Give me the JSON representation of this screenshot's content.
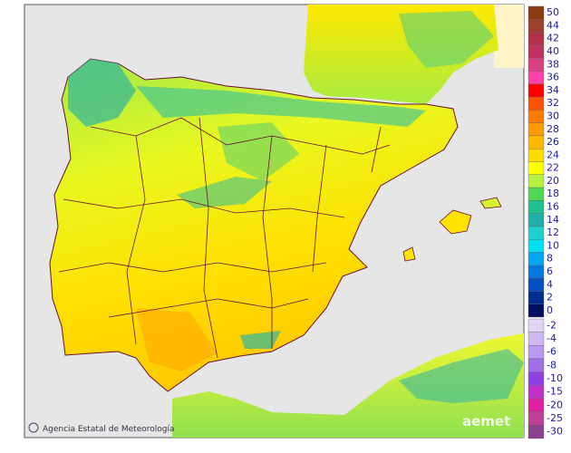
{
  "map": {
    "credit": "Agencia Estatal de Meteorología",
    "logo": "aemet",
    "legend": {
      "positive": [
        {
          "label": "50",
          "color": "#8b3a12"
        },
        {
          "label": "44",
          "color": "#a0402a"
        },
        {
          "label": "42",
          "color": "#b03048"
        },
        {
          "label": "40",
          "color": "#c03060"
        },
        {
          "label": "38",
          "color": "#d84080"
        },
        {
          "label": "36",
          "color": "#ff40a8"
        },
        {
          "label": "34",
          "color": "#ff0000"
        },
        {
          "label": "32",
          "color": "#ff5000"
        },
        {
          "label": "30",
          "color": "#ff7a00"
        },
        {
          "label": "28",
          "color": "#ff9a00"
        },
        {
          "label": "26",
          "color": "#ffba00"
        },
        {
          "label": "24",
          "color": "#ffdc00"
        },
        {
          "label": "22",
          "color": "#ffff00"
        },
        {
          "label": "20",
          "color": "#b8f040"
        },
        {
          "label": "18",
          "color": "#50d850"
        },
        {
          "label": "16",
          "color": "#20c090"
        },
        {
          "label": "14",
          "color": "#20b0a8"
        },
        {
          "label": "12",
          "color": "#20d0d0"
        },
        {
          "label": "10",
          "color": "#00e0f0"
        },
        {
          "label": "8",
          "color": "#00a8f0"
        },
        {
          "label": "6",
          "color": "#0078e0"
        },
        {
          "label": "4",
          "color": "#0050c0"
        },
        {
          "label": "2",
          "color": "#002e90"
        },
        {
          "label": "0",
          "color": "#001060"
        }
      ],
      "negative": [
        {
          "label": "-2",
          "color": "#e4d4f4"
        },
        {
          "label": "-4",
          "color": "#d0b8f0"
        },
        {
          "label": "-6",
          "color": "#b898f0"
        },
        {
          "label": "-8",
          "color": "#a070e8"
        },
        {
          "label": "-10",
          "color": "#9040e0"
        },
        {
          "label": "-15",
          "color": "#c030c8"
        },
        {
          "label": "-20",
          "color": "#e020a0"
        },
        {
          "label": "-25",
          "color": "#c04098"
        },
        {
          "label": "-30",
          "color": "#8c4090"
        }
      ]
    }
  }
}
